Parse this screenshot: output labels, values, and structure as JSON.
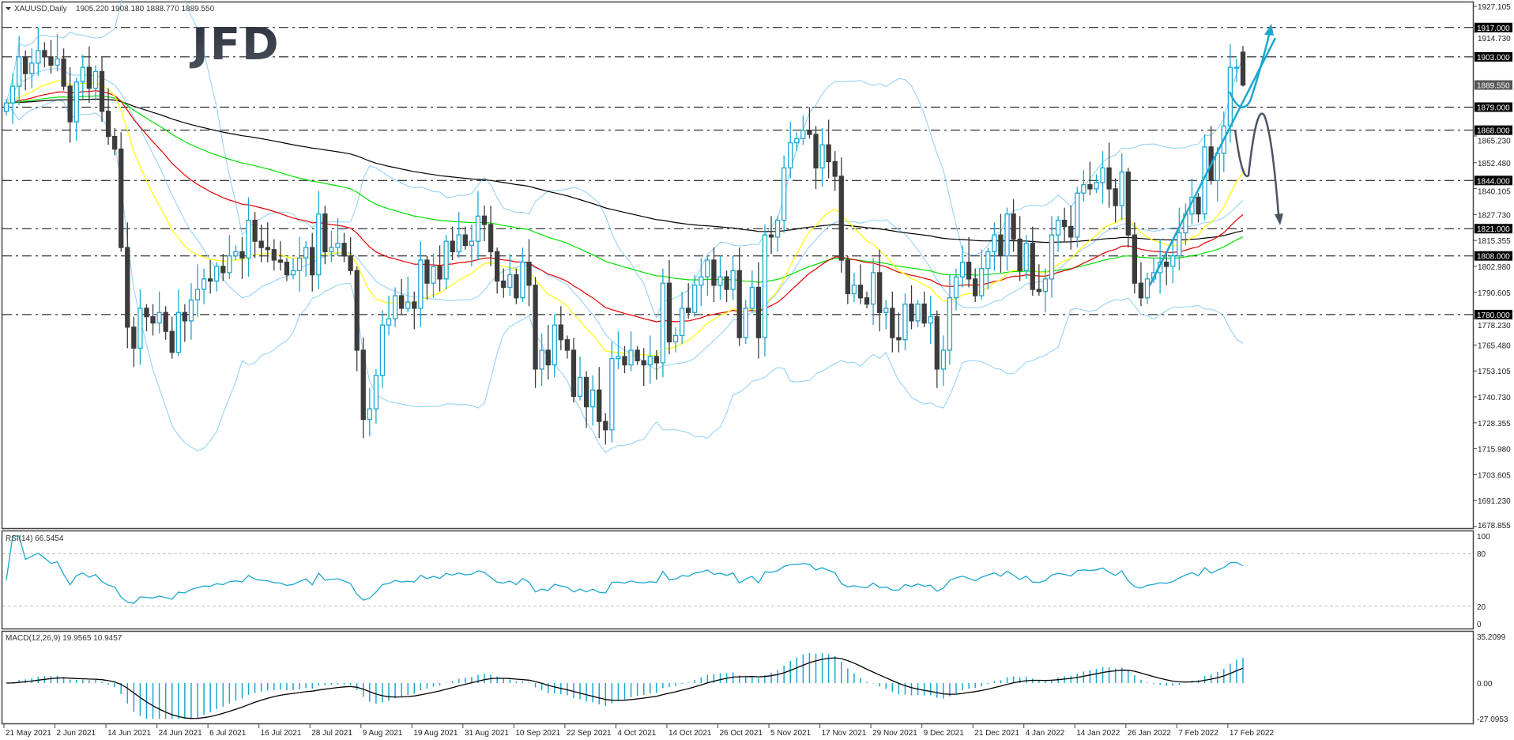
{
  "header": {
    "symbol_label": "XAUUSD,Daily",
    "ohlc_text": "1905.220 1908.180 1888.770 1889.550",
    "logo_text": "JFD"
  },
  "colors": {
    "bull_candle": "#1ba7d0",
    "bear_candle": "#3c3c3c",
    "bollinger": "#8ccff5",
    "ma_fast": "#ffff00",
    "ma_mid": "#e00000",
    "ma_slow": "#00e000",
    "ma_long": "#000000",
    "rsi_line": "#1ba7d0",
    "macd_hist": "#1ba7d0",
    "macd_signal": "#000000",
    "trend_arrow": "#1ba7d0",
    "bear_arrow": "#4a5563"
  },
  "chart_data": [
    {
      "type": "candlestick",
      "title": "XAUUSD,Daily",
      "last_bar": {
        "open": 1905.22,
        "high": 1908.18,
        "low": 1888.77,
        "close": 1889.55
      },
      "current_price": "1889.550",
      "ylim": [
        1678.855,
        1927.105
      ],
      "y_ticks": [
        "1927.105",
        "1914.730",
        "1865.230",
        "1852.480",
        "1840.105",
        "1827.730",
        "1815.355",
        "1802.980",
        "1790.605",
        "1778.230",
        "1765.480",
        "1753.105",
        "1740.730",
        "1728.355",
        "1715.980",
        "1703.605",
        "1691.230",
        "1678.855"
      ],
      "levels": [
        "1917.000",
        "1903.000",
        "1879.000",
        "1868.000",
        "1844.000",
        "1821.000",
        "1808.000",
        "1780.000"
      ],
      "x_ticks": [
        "21 May 2021",
        "2 Jun 2021",
        "14 Jun 2021",
        "24 Jun 2021",
        "6 Jul 2021",
        "16 Jul 2021",
        "28 Jul 2021",
        "9 Aug 2021",
        "19 Aug 2021",
        "31 Aug 2021",
        "10 Sep 2021",
        "22 Sep 2021",
        "4 Oct 2021",
        "14 Oct 2021",
        "26 Oct 2021",
        "5 Nov 2021",
        "17 Nov 2021",
        "29 Nov 2021",
        "9 Dec 2021",
        "21 Dec 2021",
        "4 Jan 2022",
        "14 Jan 2022",
        "26 Jan 2022",
        "7 Feb 2022",
        "17 Feb 2022"
      ],
      "closes": [
        1881,
        1889,
        1903,
        1895,
        1900,
        1906,
        1903,
        1899,
        1902,
        1889,
        1872,
        1891,
        1898,
        1888,
        1896,
        1877,
        1865,
        1859,
        1812,
        1774,
        1764,
        1783,
        1779,
        1776,
        1781,
        1772,
        1762,
        1781,
        1777,
        1787,
        1792,
        1797,
        1796,
        1803,
        1800,
        1808,
        1810,
        1807,
        1825,
        1815,
        1812,
        1811,
        1806,
        1805,
        1799,
        1801,
        1807,
        1812,
        1799,
        1828,
        1810,
        1812,
        1814,
        1808,
        1801,
        1763,
        1730,
        1735,
        1751,
        1775,
        1778,
        1789,
        1783,
        1786,
        1783,
        1806,
        1795,
        1803,
        1797,
        1815,
        1810,
        1818,
        1813,
        1815,
        1827,
        1823,
        1810,
        1796,
        1793,
        1799,
        1788,
        1805,
        1794,
        1754,
        1763,
        1756,
        1775,
        1768,
        1763,
        1741,
        1750,
        1736,
        1744,
        1729,
        1725,
        1759,
        1760,
        1756,
        1763,
        1758,
        1756,
        1760,
        1757,
        1795,
        1767,
        1770,
        1783,
        1781,
        1794,
        1798,
        1806,
        1794,
        1798,
        1792,
        1801,
        1769,
        1783,
        1793,
        1769,
        1818,
        1817,
        1825,
        1850,
        1862,
        1864,
        1868,
        1866,
        1850,
        1861,
        1853,
        1846,
        1806,
        1790,
        1794,
        1788,
        1785,
        1800,
        1781,
        1783,
        1769,
        1768,
        1785,
        1777,
        1785,
        1776,
        1779,
        1754,
        1763,
        1788,
        1798,
        1805,
        1797,
        1789,
        1802,
        1810,
        1818,
        1808,
        1828,
        1816,
        1801,
        1814,
        1792,
        1791,
        1797,
        1818,
        1825,
        1822,
        1817,
        1838,
        1842,
        1840,
        1843,
        1850,
        1840,
        1832,
        1848,
        1818,
        1795,
        1788,
        1797,
        1800,
        1805,
        1803,
        1808,
        1819,
        1828,
        1836,
        1828,
        1860,
        1844,
        1857,
        1870,
        1898,
        1898,
        1889.55
      ],
      "overlays": [
        "Bollinger Bands",
        "moving averages (yellow, red, green, black)"
      ]
    },
    {
      "type": "line",
      "title": "RSI(14) 66.5454",
      "ylim": [
        0,
        100
      ],
      "y_ticks": [
        "100",
        "80",
        "20",
        "0"
      ],
      "levels": [
        80,
        20
      ]
    },
    {
      "type": "bar",
      "title": "MACD(12,26,9) 19.9565 10.9457",
      "ylim": [
        -27.0953,
        35.2099
      ],
      "y_ticks": [
        "35.2099",
        "0.00",
        "-27.0953"
      ]
    }
  ]
}
